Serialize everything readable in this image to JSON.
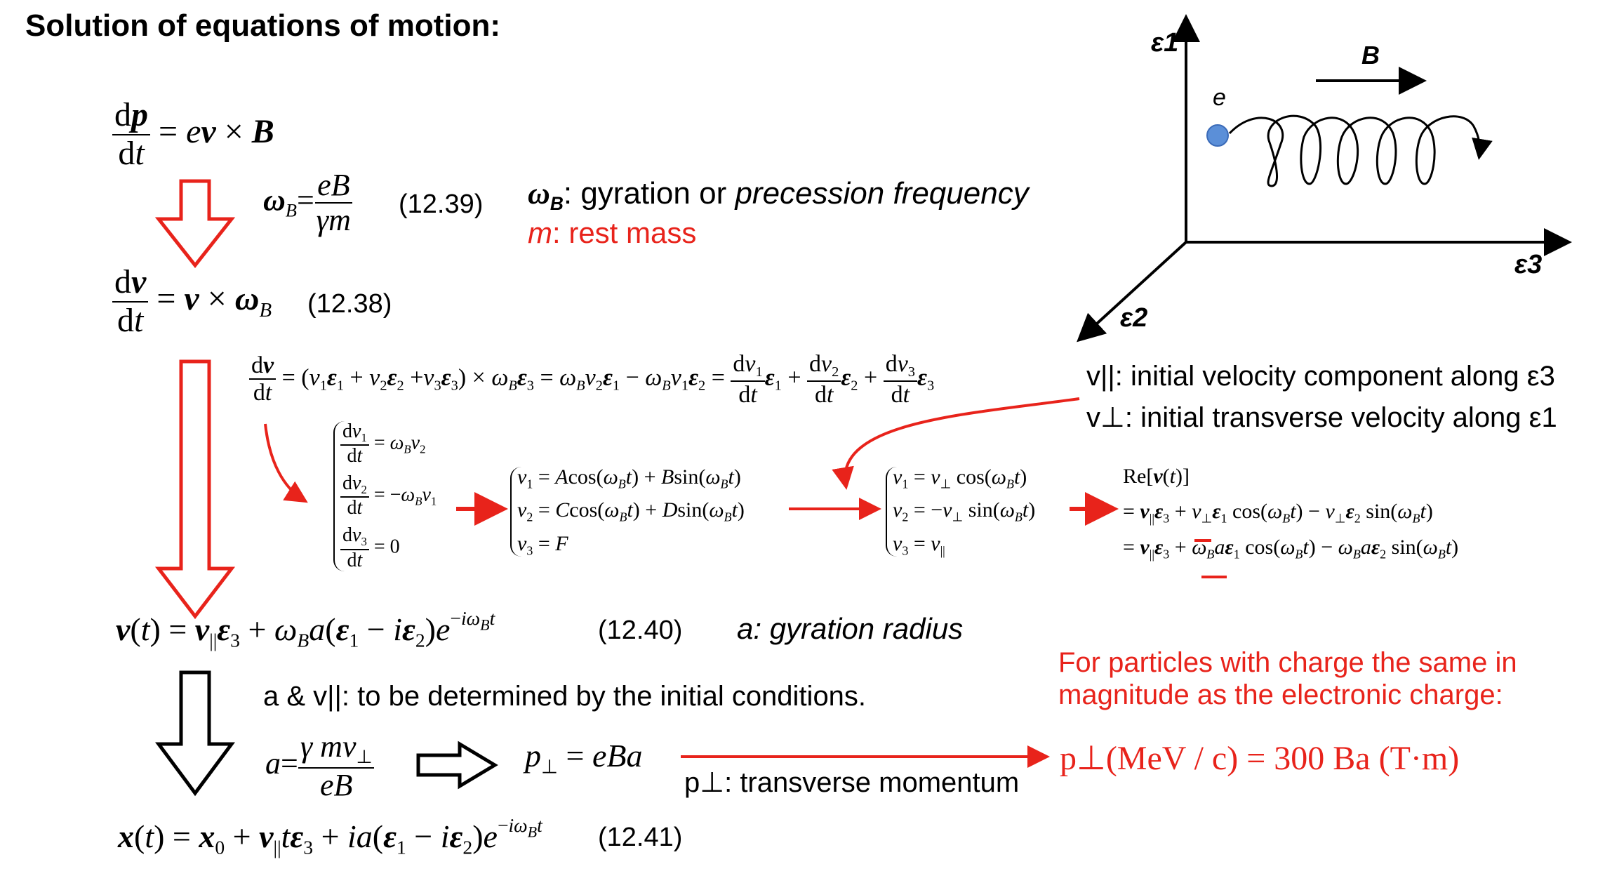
{
  "title": "Solution of equations of motion:",
  "eq_num": {
    "n39": "(12.39)",
    "n38": "(12.38)",
    "n40": "(12.40)",
    "n41": "(12.41)"
  },
  "notes": {
    "omega_symbol": "ω",
    "omega_sub": "B",
    "omega_text": ": gyration or ",
    "omega_em": "precession frequency",
    "m_symbol": "m",
    "m_text": ": rest mass",
    "a_def": "a: gyration radius",
    "v_par_line": "v||: initial velocity component along ε3",
    "v_perp_line": "v⊥: initial transverse velocity along ε1",
    "init_cond": "a & v||: to be determined by the initial conditions.",
    "p_perp_label": "p⊥: transverse momentum",
    "charge_note_1": "For particles with charge the same in",
    "charge_note_2": "magnitude as the electronic charge:"
  },
  "diagram": {
    "axis_e1": "ε1",
    "axis_e2": "ε2",
    "axis_e3": "ε3",
    "field": "B",
    "particle": "e",
    "colors": {
      "particle": "#5b8fd8",
      "red": "#e8231b"
    }
  },
  "equations": {
    "p_perp_units": "p⊥(MeV / c) = 300 Ba (T·m)"
  }
}
